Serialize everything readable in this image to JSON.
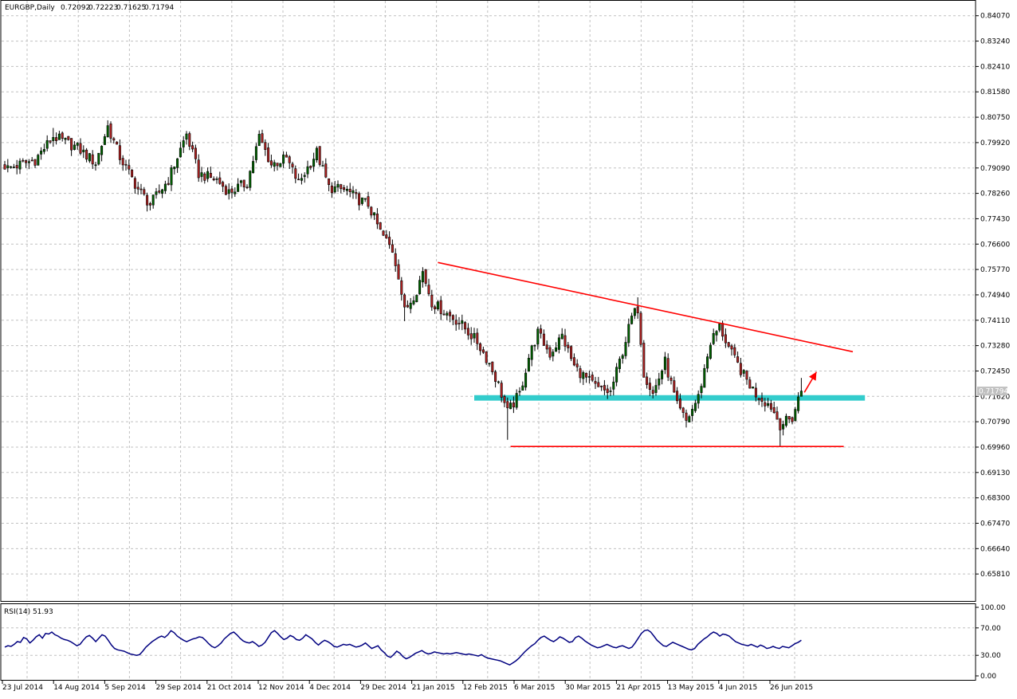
{
  "header": {
    "symbol": "EURGBP,Daily",
    "open": "0.72092",
    "high": "0.72223",
    "low": "0.71625",
    "close": "0.71794"
  },
  "colors": {
    "bull": "#006400",
    "bear": "#b22222",
    "wick": "#000000",
    "grid": "#c0c0c0",
    "trendline": "#ff0000",
    "support_zone": "#33cccc",
    "rsi_line": "#000080",
    "price_tag": "#c0c0c0"
  },
  "chart_data": [
    {
      "type": "candlestick",
      "title": "EURGBP,Daily",
      "ylim": [
        0.6498,
        0.8448
      ],
      "y_ticks": [
        "0.84070",
        "0.83240",
        "0.82410",
        "0.81580",
        "0.80750",
        "0.79920",
        "0.79090",
        "0.78260",
        "0.77430",
        "0.76600",
        "0.75770",
        "0.74940",
        "0.74110",
        "0.73280",
        "0.72450",
        "0.71620",
        "0.70790",
        "0.69960",
        "0.69130",
        "0.68300",
        "0.67470",
        "0.66640",
        "0.65810"
      ],
      "x_labels": [
        "23 Jul 2014",
        "14 Aug 2014",
        "5 Sep 2014",
        "29 Sep 2014",
        "21 Oct 2014",
        "12 Nov 2014",
        "4 Dec 2014",
        "29 Dec 2014",
        "21 Jan 2015",
        "12 Feb 2015",
        "6 Mar 2015",
        "30 Mar 2015",
        "21 Apr 2015",
        "13 May 2015",
        "4 Jun 2015",
        "26 Jun 2015"
      ],
      "last_price_label": "0.71794",
      "last_price": 0.71794,
      "anchors": [
        [
          0,
          0.7905
        ],
        [
          10,
          0.7935
        ],
        [
          16,
          0.8012
        ],
        [
          24,
          0.7975
        ],
        [
          30,
          0.7925
        ],
        [
          34,
          0.8045
        ],
        [
          38,
          0.7945
        ],
        [
          44,
          0.784
        ],
        [
          48,
          0.779
        ],
        [
          54,
          0.787
        ],
        [
          60,
          0.802
        ],
        [
          64,
          0.789
        ],
        [
          70,
          0.787
        ],
        [
          74,
          0.783
        ],
        [
          80,
          0.786
        ],
        [
          84,
          0.801
        ],
        [
          88,
          0.792
        ],
        [
          93,
          0.794
        ],
        [
          97,
          0.786
        ],
        [
          103,
          0.796
        ],
        [
          107,
          0.7845
        ],
        [
          113,
          0.7835
        ],
        [
          116,
          0.781
        ],
        [
          120,
          0.779
        ],
        [
          124,
          0.77
        ],
        [
          128,
          0.764
        ],
        [
          130,
          0.756
        ],
        [
          132,
          0.744
        ],
        [
          136,
          0.751
        ],
        [
          138,
          0.757
        ],
        [
          141,
          0.747
        ],
        [
          145,
          0.744
        ],
        [
          150,
          0.7405
        ],
        [
          156,
          0.734
        ],
        [
          160,
          0.727
        ],
        [
          163,
          0.72
        ],
        [
          166,
          0.711
        ],
        [
          170,
          0.717
        ],
        [
          173,
          0.729
        ],
        [
          176,
          0.737
        ],
        [
          180,
          0.73
        ],
        [
          184,
          0.736
        ],
        [
          188,
          0.726
        ],
        [
          192,
          0.722
        ],
        [
          196,
          0.7185
        ],
        [
          200,
          0.7175
        ],
        [
          204,
          0.731
        ],
        [
          207,
          0.742
        ],
        [
          209,
          0.745
        ],
        [
          211,
          0.724
        ],
        [
          214,
          0.717
        ],
        [
          218,
          0.7275
        ],
        [
          222,
          0.713
        ],
        [
          225,
          0.708
        ],
        [
          229,
          0.716
        ],
        [
          233,
          0.734
        ],
        [
          236,
          0.739
        ],
        [
          240,
          0.73
        ],
        [
          244,
          0.723
        ],
        [
          248,
          0.717
        ],
        [
          253,
          0.713
        ],
        [
          256,
          0.707
        ],
        [
          260,
          0.709
        ],
        [
          263,
          0.7185
        ]
      ],
      "wick_extremes": [
        [
          0,
          0.7932
        ],
        [
          16,
          0.804
        ],
        [
          34,
          0.8065
        ],
        [
          48,
          0.777
        ],
        [
          60,
          0.803
        ],
        [
          84,
          0.8015
        ],
        [
          128,
          0.7675
        ],
        [
          132,
          0.7408
        ],
        [
          166,
          0.702
        ],
        [
          176,
          0.739
        ],
        [
          209,
          0.7486
        ],
        [
          225,
          0.706
        ],
        [
          236,
          0.74
        ],
        [
          256,
          0.6998
        ],
        [
          263,
          0.7222
        ]
      ],
      "trendlines": [
        {
          "from": [
            143,
            0.76
          ],
          "to": [
            280,
            0.7308
          ]
        },
        {
          "from": [
            167,
            0.6998
          ],
          "to": [
            277,
            0.6998
          ]
        }
      ],
      "support_zone": {
        "from": 155,
        "to": 284,
        "y_low": 0.7148,
        "y_high": 0.7166
      },
      "arrow": {
        "from": [
          264,
          0.7175
        ],
        "to": [
          268,
          0.7242
        ]
      }
    },
    {
      "type": "line",
      "title": "RSI(14) 51.93",
      "ylim": [
        0,
        100
      ],
      "y_ticks": [
        "100.00",
        "70.00",
        "30.00",
        "0.00"
      ],
      "levels": [
        70,
        30
      ],
      "series": [
        {
          "name": "RSI(14)",
          "values": [
            42,
            44,
            43,
            46,
            50,
            49,
            56,
            54,
            48,
            52,
            57,
            60,
            55,
            62,
            61,
            64,
            60,
            58,
            55,
            53,
            52,
            50,
            47,
            44,
            46,
            52,
            57,
            59,
            55,
            50,
            55,
            60,
            58,
            52,
            45,
            40,
            38,
            37,
            36,
            34,
            32,
            31,
            30,
            31,
            36,
            42,
            46,
            50,
            53,
            56,
            58,
            56,
            60,
            66,
            63,
            58,
            55,
            52,
            50,
            52,
            54,
            55,
            57,
            56,
            52,
            47,
            43,
            41,
            44,
            48,
            54,
            58,
            62,
            64,
            60,
            55,
            51,
            49,
            48,
            50,
            47,
            43,
            45,
            49,
            56,
            63,
            66,
            62,
            57,
            53,
            55,
            59,
            57,
            53,
            52,
            55,
            60,
            57,
            54,
            49,
            45,
            49,
            52,
            50,
            47,
            43,
            42,
            44,
            46,
            45,
            46,
            44,
            42,
            43,
            45,
            48,
            44,
            40,
            42,
            44,
            38,
            34,
            29,
            27,
            31,
            36,
            33,
            28,
            25,
            27,
            30,
            33,
            35,
            37,
            34,
            32,
            33,
            35,
            34,
            33,
            32,
            33,
            32,
            33,
            34,
            33,
            32,
            31,
            32,
            31,
            30,
            29,
            31,
            28,
            26,
            25,
            24,
            23,
            22,
            20,
            18,
            16,
            19,
            22,
            26,
            31,
            36,
            40,
            44,
            47,
            52,
            56,
            58,
            55,
            52,
            50,
            53,
            57,
            55,
            52,
            49,
            50,
            56,
            58,
            55,
            51,
            48,
            45,
            43,
            41,
            42,
            44,
            46,
            44,
            42,
            41,
            43,
            44,
            42,
            40,
            42,
            48,
            55,
            62,
            66,
            67,
            64,
            58,
            52,
            48,
            44,
            43,
            46,
            49,
            47,
            45,
            43,
            41,
            39,
            38,
            40,
            46,
            50,
            54,
            57,
            61,
            64,
            62,
            58,
            61,
            60,
            58,
            54,
            50,
            48,
            46,
            45,
            44,
            46,
            44,
            42,
            45,
            43,
            40,
            41,
            43,
            41,
            40,
            43,
            42,
            41,
            44,
            47,
            49,
            51.93
          ]
        }
      ]
    }
  ]
}
